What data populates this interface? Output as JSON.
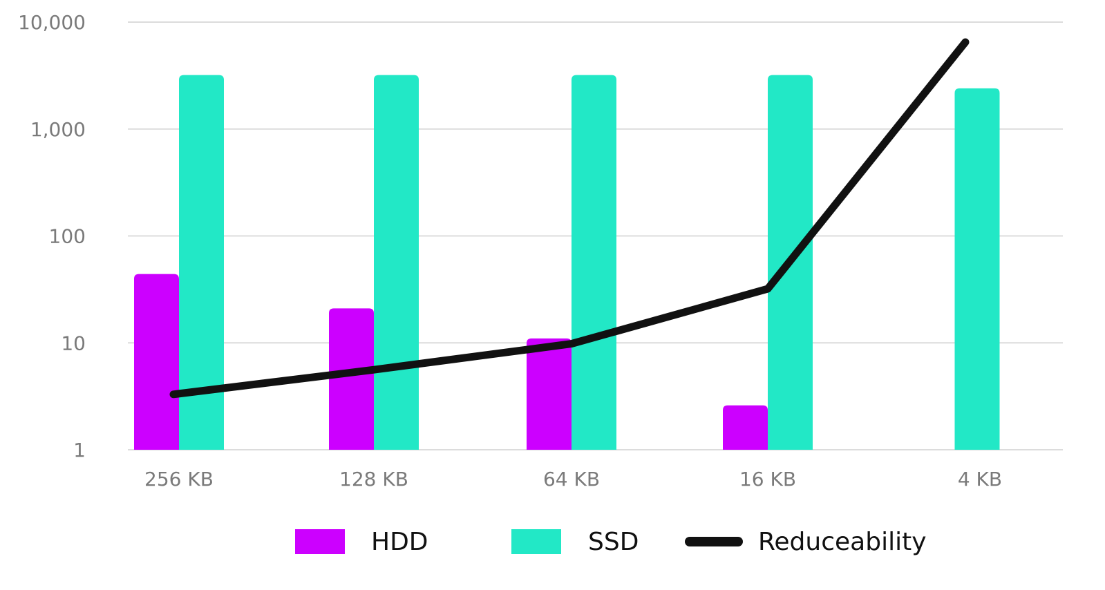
{
  "chart_data": {
    "type": "bar",
    "scale": "log",
    "ylim": [
      1,
      10000
    ],
    "yticks": [
      {
        "value": 10000,
        "label": "10,000"
      },
      {
        "value": 1000,
        "label": "1,000"
      },
      {
        "value": 100,
        "label": "100"
      },
      {
        "value": 10,
        "label": "10"
      },
      {
        "value": 1,
        "label": "1"
      }
    ],
    "categories": [
      "256 KB",
      "128 KB",
      "64 KB",
      "16 KB",
      "4 KB"
    ],
    "grid": true,
    "legend_position": "bottom",
    "series": [
      {
        "name": "HDD",
        "kind": "bar",
        "color": "#cc00ff",
        "values": [
          44,
          21,
          11,
          2.6,
          null
        ]
      },
      {
        "name": "SSD",
        "kind": "bar",
        "color": "#22e8c6",
        "values": [
          3200,
          3200,
          3200,
          3200,
          2400
        ]
      },
      {
        "name": "Reduceability",
        "kind": "line",
        "color": "#111111",
        "values": [
          3.3,
          5.6,
          9.8,
          32,
          6500
        ]
      }
    ]
  }
}
